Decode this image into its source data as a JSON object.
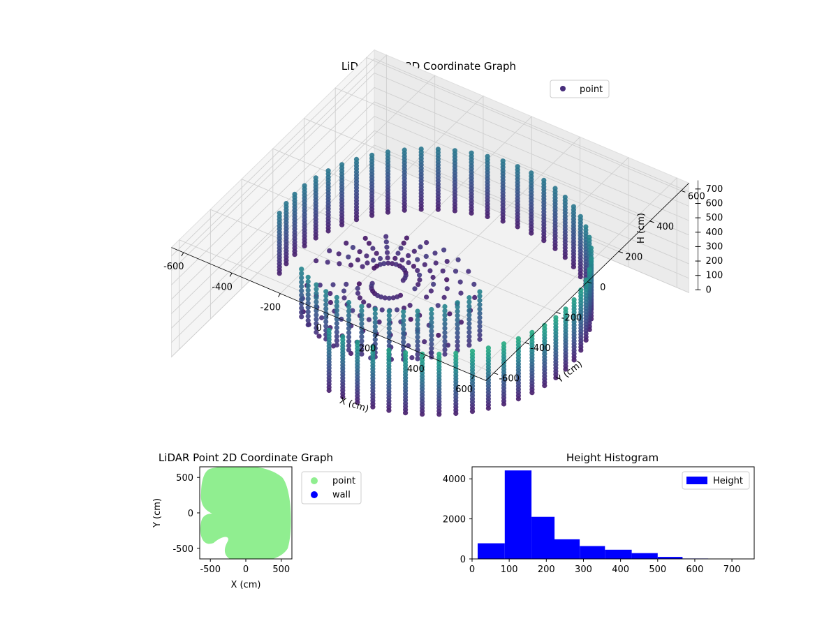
{
  "chart_data": [
    {
      "id": "lidar3d",
      "type": "scatter",
      "title": "LiDAR Point 3D Coordinate Graph",
      "xlabel": "X (cm)",
      "ylabel": "Y (cm)",
      "zlabel": "H (cm)",
      "xlim": [
        -650,
        650
      ],
      "ylim": [
        -650,
        650
      ],
      "zlim": [
        760,
        0
      ],
      "xticks": [
        -600,
        -400,
        -200,
        0,
        200,
        400,
        600
      ],
      "yticks": [
        -600,
        -400,
        -200,
        0,
        200,
        400,
        600
      ],
      "zticks": [
        0,
        100,
        200,
        300,
        400,
        500,
        600,
        700
      ],
      "legend": {
        "position": "top-right",
        "entries": [
          "point"
        ]
      },
      "colormap": "viridis",
      "grid": true
    },
    {
      "id": "lidar2d",
      "type": "scatter",
      "title": "LiDAR Point 2D Coordinate Graph",
      "xlabel": "X (cm)",
      "ylabel": "Y (cm)",
      "xlim": [
        -650,
        650
      ],
      "ylim": [
        -650,
        650
      ],
      "xticks": [
        -500,
        0,
        500
      ],
      "yticks": [
        -500,
        0,
        500
      ],
      "series": [
        {
          "name": "point",
          "color": "#90ee90"
        },
        {
          "name": "wall",
          "color": "#0000ff"
        }
      ],
      "legend": {
        "position": "outside-right",
        "entries": [
          "point",
          "wall"
        ]
      }
    },
    {
      "id": "height_hist",
      "type": "bar",
      "title": "Height Histogram",
      "xlim": [
        0,
        760
      ],
      "ylim": [
        0,
        4600
      ],
      "xticks": [
        0,
        100,
        200,
        300,
        400,
        500,
        600,
        700
      ],
      "yticks": [
        0,
        2000,
        4000
      ],
      "bin_edges": [
        15,
        88,
        160,
        222,
        290,
        358,
        430,
        500,
        567,
        636,
        705
      ],
      "counts": [
        780,
        4420,
        2100,
        980,
        640,
        460,
        290,
        100,
        20,
        10
      ],
      "series": [
        {
          "name": "Height",
          "color": "#0000ff"
        }
      ],
      "legend": {
        "position": "top-right",
        "entries": [
          "Height"
        ]
      }
    }
  ]
}
